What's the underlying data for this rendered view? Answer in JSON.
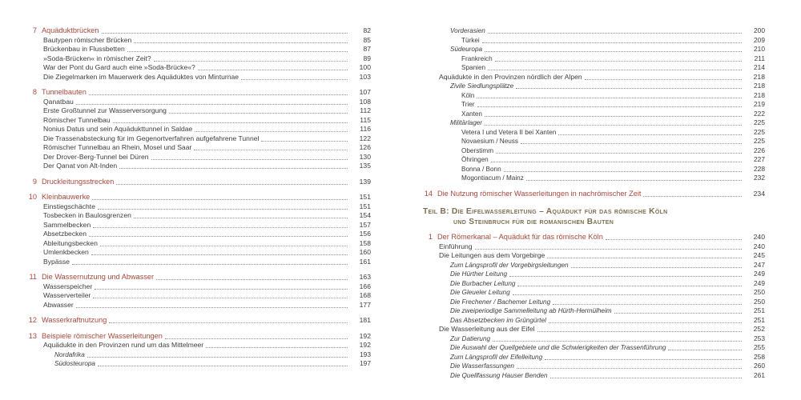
{
  "colors": {
    "accent": "#a8483b",
    "part_heading": "#7d6e52",
    "text": "#3c3c3c",
    "dot_leader": "#8f8f8f",
    "background": "#ffffff"
  },
  "toc": {
    "left": {
      "entries": [
        {
          "level": 1,
          "num": "7",
          "label": "Aquäduktbrücken",
          "page": "82",
          "gap": false
        },
        {
          "level": 2,
          "label": "Bautypen römischer Brücken",
          "page": "85"
        },
        {
          "level": 2,
          "label": "Brückenbau in Flussbetten",
          "page": "87"
        },
        {
          "level": 2,
          "label": "»Soda-Brücken« in römischer Zeit?",
          "page": "89"
        },
        {
          "level": 2,
          "label": "War der Pont du Gard auch eine »Soda-Brücke«?",
          "page": "100"
        },
        {
          "level": 2,
          "label": "Die Ziegelmarken im Mauerwerk des Aquäduktes von Minturnae",
          "page": "103"
        },
        {
          "level": 1,
          "num": "8",
          "label": "Tunnelbauten",
          "page": "107",
          "gap": true
        },
        {
          "level": 2,
          "label": "Qanatbau",
          "page": "108"
        },
        {
          "level": 2,
          "label": "Erste Großtunnel zur Wasserversorgung",
          "page": "112"
        },
        {
          "level": 2,
          "label": "Römischer Tunnelbau",
          "page": "115"
        },
        {
          "level": 2,
          "label": "Nonius Datus und sein Aquädukttunnel in Saldae",
          "page": "116"
        },
        {
          "level": 2,
          "label": "Die Trassenabsteckung für im Gegenortverfahren aufgefahrene Tunnel",
          "page": "122"
        },
        {
          "level": 2,
          "label": "Römischer Tunnelbau an Rhein, Mosel und Saar",
          "page": "126"
        },
        {
          "level": 2,
          "label": "Der Drover-Berg-Tunnel bei Düren",
          "page": "130"
        },
        {
          "level": 2,
          "label": "Der Qanat von Alt-Inden",
          "page": "135"
        },
        {
          "level": 1,
          "num": "9",
          "label": "Druckleitungsstrecken",
          "page": "139",
          "gap": true
        },
        {
          "level": 1,
          "num": "10",
          "label": "Kleinbauwerke",
          "page": "151",
          "gap": true
        },
        {
          "level": 2,
          "label": "Einstiegschächte",
          "page": "151"
        },
        {
          "level": 2,
          "label": "Tosbecken in Baulosgrenzen",
          "page": "154"
        },
        {
          "level": 2,
          "label": "Sammelbecken",
          "page": "157"
        },
        {
          "level": 2,
          "label": "Absetzbecken",
          "page": "156"
        },
        {
          "level": 2,
          "label": "Ableitungsbecken",
          "page": "158"
        },
        {
          "level": 2,
          "label": "Umlenkbecken",
          "page": "160"
        },
        {
          "level": 2,
          "label": "Bypässe",
          "page": "161"
        },
        {
          "level": 1,
          "num": "11",
          "label": "Die Wassernutzung und Abwasser",
          "page": "163",
          "gap": true
        },
        {
          "level": 2,
          "label": "Wasserspeicher",
          "page": "166"
        },
        {
          "level": 2,
          "label": "Wasserverteiler",
          "page": "168"
        },
        {
          "level": 2,
          "label": "Abwasser",
          "page": "177"
        },
        {
          "level": 1,
          "num": "12",
          "label": "Wasserkraftnutzung",
          "page": "181",
          "gap": true
        },
        {
          "level": 1,
          "num": "13",
          "label": "Beispiele römischer Wasserleitungen",
          "page": "192",
          "gap": true
        },
        {
          "level": 2,
          "label": "Aquädukte in den Provinzen rund um das Mittelmeer",
          "page": "192"
        },
        {
          "level": 3,
          "label": "Nordafrika",
          "page": "193"
        },
        {
          "level": 3,
          "label": "Südosteuropa",
          "page": "197"
        }
      ]
    },
    "right": {
      "entries": [
        {
          "level": 3,
          "label": "Vorderasien",
          "page": "200"
        },
        {
          "level": 4,
          "label": "Türkei",
          "page": "209"
        },
        {
          "level": 3,
          "label": "Südeuropa",
          "page": "210"
        },
        {
          "level": 4,
          "label": "Frankreich",
          "page": "211"
        },
        {
          "level": 4,
          "label": "Spanien",
          "page": "214"
        },
        {
          "level": 2,
          "label": "Aquädukte in den Provinzen nördlich der Alpen",
          "page": "218"
        },
        {
          "level": 3,
          "label": "Zivile Siedlungsplätze",
          "page": "218"
        },
        {
          "level": 4,
          "label": "Köln",
          "page": "218"
        },
        {
          "level": 4,
          "label": "Trier",
          "page": "219"
        },
        {
          "level": 4,
          "label": "Xanten",
          "page": "222"
        },
        {
          "level": 3,
          "label": "Militärlager",
          "page": "225"
        },
        {
          "level": 4,
          "label": "Vetera I und Vetera II bei Xanten",
          "page": "225"
        },
        {
          "level": 4,
          "label": "Novaesium / Neuss",
          "page": "225"
        },
        {
          "level": 4,
          "label": "Oberstimm",
          "page": "226"
        },
        {
          "level": 4,
          "label": "Öhringen",
          "page": "227"
        },
        {
          "level": 4,
          "label": "Bonna / Bonn",
          "page": "228"
        },
        {
          "level": 4,
          "label": "Mogontiacum / Mainz",
          "page": "232"
        },
        {
          "level": 1,
          "num": "14",
          "label": "Die Nutzung römischer Wasserleitungen in nachrömischer Zeit",
          "page": "234",
          "gap": true
        },
        {
          "type": "part",
          "lines": [
            "Teil B: Die Eifelwasserleitung – Aquädukt für das römische Köln",
            "und Steinbruch für die romanischen Bauten"
          ]
        },
        {
          "level": 1,
          "num": "1",
          "label": "Der Römerkanal – Aquädukt für das römische Köln",
          "page": "240"
        },
        {
          "level": 2,
          "label": "Einführung",
          "page": "240"
        },
        {
          "level": 2,
          "label": "Die Leitungen aus dem Vorgebirge",
          "page": "245"
        },
        {
          "level": 3,
          "label": "Zum Längsprofil der Vorgebirgsleitungen",
          "page": "247"
        },
        {
          "level": 3,
          "label": "Die Hürther Leitung",
          "page": "249"
        },
        {
          "level": 3,
          "label": "Die Burbacher Leitung",
          "page": "249"
        },
        {
          "level": 3,
          "label": "Die Gleueler Leitung",
          "page": "250"
        },
        {
          "level": 3,
          "label": "Die Frechener / Bachemer Leitung",
          "page": "250"
        },
        {
          "level": 3,
          "label": "Die zweiperiodige Sammelleitung ab Hürth-Hermülheim",
          "page": "251"
        },
        {
          "level": 3,
          "label": "Das Absetzbecken im Grüngürtel",
          "page": "251"
        },
        {
          "level": 2,
          "label": "Die Wasserleitung aus der Eifel",
          "page": "252"
        },
        {
          "level": 3,
          "label": "Zur Datierung",
          "page": "253"
        },
        {
          "level": 3,
          "label": "Die Auswahl der Quellgebiete und die Schwierigkeiten der Trassenführung",
          "page": "255"
        },
        {
          "level": 3,
          "label": "Zum Längsprofil der Eifelleitung",
          "page": "258"
        },
        {
          "level": 3,
          "label": "Die Wasserfassungen",
          "page": "260"
        },
        {
          "level": 3,
          "label": "Die Quellfassung Hauser Benden",
          "page": "261"
        }
      ]
    }
  }
}
